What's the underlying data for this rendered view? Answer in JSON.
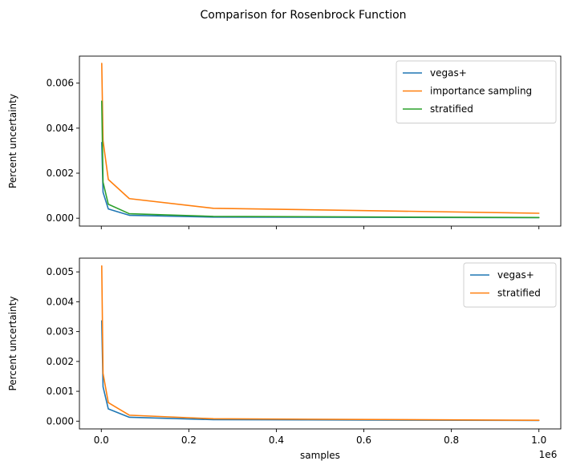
{
  "figure": {
    "suptitle": "Comparison for Rosenbrock Function",
    "x_offset_label": "1e6"
  },
  "chart_data": [
    {
      "type": "line",
      "title": "",
      "xlabel": "",
      "ylabel": "Percent uncertainty",
      "xlim": [
        -50000,
        1050000
      ],
      "ylim": [
        -0.00035,
        0.0072
      ],
      "xticks": [
        0,
        200000,
        400000,
        600000,
        800000,
        1000000
      ],
      "xtick_labels": [
        "",
        "",
        "",
        "",
        "",
        ""
      ],
      "yticks": [
        0,
        0.002,
        0.004,
        0.006
      ],
      "ytick_labels": [
        "0.000",
        "0.002",
        "0.004",
        "0.006"
      ],
      "legend_position": "upper right",
      "grid": false,
      "x": [
        1000,
        4000,
        16000,
        64000,
        256000,
        1000000
      ],
      "series": [
        {
          "name": "vegas+",
          "color": "#1f77b4",
          "values": [
            0.00336,
            0.00115,
            0.00041,
            0.00013,
            5e-05,
            2.5e-05
          ]
        },
        {
          "name": "importance sampling",
          "color": "#ff7f0e",
          "values": [
            0.00688,
            0.00345,
            0.00172,
            0.00087,
            0.00044,
            0.00022
          ]
        },
        {
          "name": "stratified",
          "color": "#2ca02c",
          "values": [
            0.0052,
            0.0016,
            0.00062,
            0.0002,
            8e-05,
            3e-05
          ]
        }
      ]
    },
    {
      "type": "line",
      "title": "",
      "xlabel": "samples",
      "ylabel": "Percent uncertainty",
      "xlim": [
        -50000,
        1050000
      ],
      "ylim": [
        -0.00026,
        0.00546
      ],
      "xticks": [
        0,
        200000,
        400000,
        600000,
        800000,
        1000000
      ],
      "xtick_labels": [
        "0.0",
        "0.2",
        "0.4",
        "0.6",
        "0.8",
        "1.0"
      ],
      "yticks": [
        0,
        0.001,
        0.002,
        0.003,
        0.004,
        0.005
      ],
      "ytick_labels": [
        "0.000",
        "0.001",
        "0.002",
        "0.003",
        "0.004",
        "0.005"
      ],
      "legend_position": "upper right",
      "grid": false,
      "x": [
        1000,
        4000,
        16000,
        64000,
        256000,
        1000000
      ],
      "series": [
        {
          "name": "vegas+",
          "color": "#1f77b4",
          "values": [
            0.00336,
            0.00115,
            0.00041,
            0.00013,
            5e-05,
            2.5e-05
          ]
        },
        {
          "name": "stratified",
          "color": "#ff7f0e",
          "values": [
            0.0052,
            0.0016,
            0.00062,
            0.0002,
            8e-05,
            3e-05
          ]
        }
      ]
    }
  ]
}
